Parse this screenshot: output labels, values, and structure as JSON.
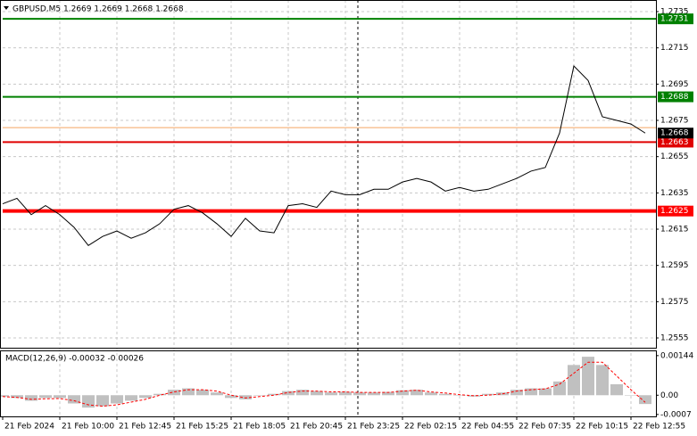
{
  "chart_data": [
    {
      "type": "line",
      "title": "GBPUSD,M5  1.2669 1.2669 1.2668 1.2668",
      "categories": [
        "21 Feb 2024",
        null,
        null,
        null,
        "21 Feb 10:00",
        null,
        null,
        null,
        "21 Feb 12:45",
        null,
        null,
        null,
        "21 Feb 15:25",
        null,
        null,
        null,
        "21 Feb 18:05",
        null,
        null,
        null,
        "21 Feb 20:45",
        null,
        null,
        null,
        "21 Feb 23:25",
        null,
        null,
        null,
        "22 Feb 02:15",
        null,
        null,
        null,
        "22 Feb 04:55",
        null,
        null,
        null,
        "22 Feb 07:35",
        null,
        null,
        null,
        "22 Feb 10:15",
        null,
        null,
        null,
        "22 Feb 12:55",
        null
      ],
      "series": [
        {
          "name": "GBPUSD",
          "color": "#000000",
          "values": [
            1.2629,
            1.2632,
            1.2623,
            1.2628,
            1.2623,
            1.2616,
            1.2606,
            1.2611,
            1.2614,
            1.261,
            1.2613,
            1.2618,
            1.2626,
            1.2628,
            1.2624,
            1.2618,
            1.2611,
            1.2621,
            1.2614,
            1.2613,
            1.2628,
            1.2629,
            1.2627,
            1.2636,
            1.2634,
            1.2634,
            1.2637,
            1.2637,
            1.2641,
            1.2643,
            1.2641,
            1.2636,
            1.2638,
            1.2636,
            1.2637,
            1.264,
            1.2643,
            1.2647,
            1.2649,
            1.2668,
            1.2705,
            1.2697,
            1.2677,
            1.2675,
            1.2673,
            1.2668
          ]
        }
      ],
      "levels": [
        {
          "value": 1.2731,
          "color": "#008000"
        },
        {
          "value": 1.2688,
          "color": "#008000"
        },
        {
          "value": 1.2663,
          "color": "#e00000"
        },
        {
          "value": 1.2625,
          "color": "#ff0000"
        },
        {
          "value": 1.2671,
          "color": "#f4a460"
        }
      ],
      "current_price": 1.2668,
      "ylim": [
        1.25496,
        1.27414
      ],
      "yticks": [
        1.2735,
        1.2715,
        1.2695,
        1.2675,
        1.2655,
        1.2635,
        1.2615,
        1.2595,
        1.2575,
        1.2555
      ],
      "grid": true
    },
    {
      "type": "macd",
      "title": "MACD(12,26,9) -0.00032 -0.00026",
      "series": [
        {
          "name": "MACD",
          "color": "#c0c0c0",
          "values": [
            -5e-05,
            -0.0001,
            -0.0002,
            -0.0001,
            -0.0001,
            -0.0003,
            -0.00045,
            -0.0004,
            -0.0003,
            -0.0002,
            -0.0001,
            5e-05,
            0.0002,
            0.00025,
            0.0002,
            0.0001,
            -0.0001,
            -0.00015,
            0.0,
            5e-05,
            0.00015,
            0.0002,
            0.00015,
            0.0001,
            0.00012,
            0.0001,
            0.0001,
            0.00012,
            0.00018,
            0.0002,
            0.0001,
            5e-05,
            0.0,
            -5e-05,
            5e-05,
            0.0001,
            0.0002,
            0.00025,
            0.00025,
            0.0005,
            0.0011,
            0.0014,
            0.0011,
            0.0004,
            0.0,
            -0.00032
          ]
        },
        {
          "name": "Signal",
          "color": "#ff0000",
          "values": [
            -5e-05,
            -8e-05,
            -0.00015,
            -0.00013,
            -0.00012,
            -0.0002,
            -0.00035,
            -0.0004,
            -0.00035,
            -0.00025,
            -0.00015,
            0.0,
            0.00012,
            0.0002,
            0.0002,
            0.00015,
            0.0,
            -0.0001,
            -5e-05,
            0.0,
            0.0001,
            0.00015,
            0.00015,
            0.00012,
            0.00012,
            0.0001,
            0.0001,
            0.0001,
            0.00015,
            0.00018,
            0.00012,
            8e-05,
            2e-05,
            -2e-05,
            0.0,
            5e-05,
            0.00015,
            0.0002,
            0.00023,
            0.0004,
            0.0008,
            0.0012,
            0.0012,
            0.0007,
            0.0002,
            -0.00026
          ]
        }
      ],
      "ylim": [
        -0.00077,
        0.00163
      ],
      "yticks": [
        0.00144,
        {
          "value": 0,
          "label": "0.00"
        },
        {
          "value": -0.0007,
          "label": "-0.0007"
        }
      ]
    }
  ]
}
